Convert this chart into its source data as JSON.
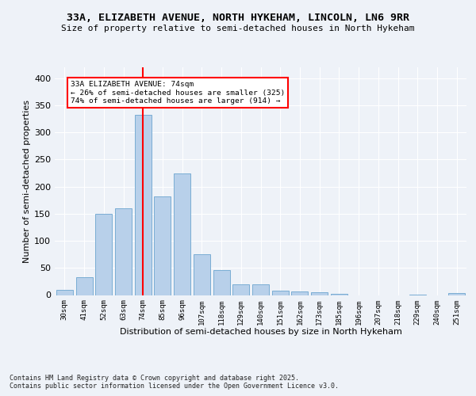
{
  "title1": "33A, ELIZABETH AVENUE, NORTH HYKEHAM, LINCOLN, LN6 9RR",
  "title2": "Size of property relative to semi-detached houses in North Hykeham",
  "xlabel": "Distribution of semi-detached houses by size in North Hykeham",
  "ylabel": "Number of semi-detached properties",
  "categories": [
    "30sqm",
    "41sqm",
    "52sqm",
    "63sqm",
    "74sqm",
    "85sqm",
    "96sqm",
    "107sqm",
    "118sqm",
    "129sqm",
    "140sqm",
    "151sqm",
    "162sqm",
    "173sqm",
    "185sqm",
    "196sqm",
    "207sqm",
    "218sqm",
    "229sqm",
    "240sqm",
    "251sqm"
  ],
  "values": [
    10,
    33,
    150,
    160,
    333,
    182,
    224,
    75,
    46,
    19,
    19,
    8,
    6,
    5,
    2,
    0,
    0,
    0,
    1,
    0,
    3
  ],
  "bar_color": "#b8d0ea",
  "bar_edge_color": "#7aadd4",
  "vline_x_idx": 4,
  "vline_color": "red",
  "annotation_text": "33A ELIZABETH AVENUE: 74sqm\n← 26% of semi-detached houses are smaller (325)\n74% of semi-detached houses are larger (914) →",
  "annotation_box_color": "white",
  "annotation_box_edge": "red",
  "ylim": [
    0,
    420
  ],
  "yticks": [
    0,
    50,
    100,
    150,
    200,
    250,
    300,
    350,
    400
  ],
  "footer": "Contains HM Land Registry data © Crown copyright and database right 2025.\nContains public sector information licensed under the Open Government Licence v3.0.",
  "bg_color": "#eef2f8",
  "grid_color": "#ffffff"
}
